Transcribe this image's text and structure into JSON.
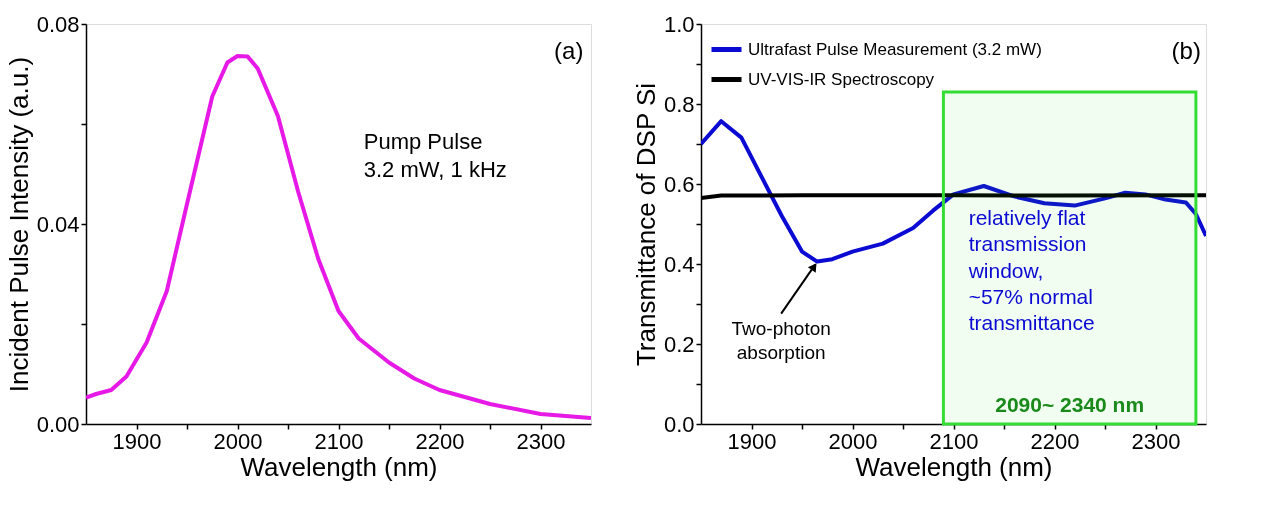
{
  "chart_data": [
    {
      "type": "line",
      "xlabel": "Wavelength (nm)",
      "ylabel": "Incident Pulse Intensity (a.u.)",
      "x": [
        1850,
        1860,
        1875,
        1890,
        1910,
        1930,
        1950,
        1975,
        1990,
        2000,
        2010,
        2020,
        2040,
        2060,
        2080,
        2100,
        2120,
        2150,
        2175,
        2200,
        2250,
        2300,
        2350
      ],
      "series": [
        {
          "color": "#e619e6",
          "values": [
            0.0053,
            0.006,
            0.0068,
            0.0095,
            0.0163,
            0.0266,
            0.044,
            0.0655,
            0.0723,
            0.0736,
            0.0735,
            0.0711,
            0.0616,
            0.0465,
            0.033,
            0.0226,
            0.0171,
            0.0123,
            0.0091,
            0.0068,
            0.004,
            0.002,
            0.0012
          ]
        }
      ],
      "xlim": [
        1850,
        2350
      ],
      "ylim": [
        0,
        0.08
      ],
      "xticks": [
        1900,
        {
          "value": 1950,
          "label": null
        },
        2000,
        {
          "value": 2050,
          "label": null
        },
        2100,
        {
          "value": 2150,
          "label": null
        },
        2200,
        {
          "value": 2250,
          "label": null
        },
        2300
      ],
      "yticks": [
        {
          "value": 0,
          "label": "0.00"
        },
        {
          "value": 0.02,
          "label": null
        },
        0.04,
        {
          "value": 0.06,
          "label": null
        },
        0.08
      ],
      "annotations": [
        "(a)",
        "Pump Pulse\n3.2 mW, 1 kHz"
      ],
      "grid": false,
      "legend": false
    },
    {
      "type": "line",
      "xlabel": "Wavelength (nm)",
      "ylabel": "Transmittance of DSP Si",
      "series": [
        {
          "name": "Ultrafast Pulse Measurement (3.2 mW)",
          "color": "#0a0ad2",
          "x": [
            1850,
            1870,
            1890,
            1910,
            1930,
            1950,
            1965,
            1980,
            2000,
            2030,
            2060,
            2080,
            2100,
            2130,
            2160,
            2190,
            2220,
            2250,
            2270,
            2290,
            2310,
            2330,
            2340,
            2350
          ],
          "values": [
            0.7,
            0.757,
            0.716,
            0.618,
            0.52,
            0.431,
            0.406,
            0.412,
            0.431,
            0.451,
            0.49,
            0.534,
            0.574,
            0.595,
            0.569,
            0.552,
            0.546,
            0.564,
            0.578,
            0.574,
            0.561,
            0.554,
            0.525,
            0.47
          ]
        },
        {
          "name": "UV-VIS-IR Spectroscopy",
          "color": "#000000",
          "x": [
            1850,
            1870,
            1950,
            2100,
            2200,
            2350
          ],
          "values": [
            0.565,
            0.571,
            0.572,
            0.572,
            0.571,
            0.572
          ]
        }
      ],
      "xlim": [
        1850,
        2350
      ],
      "ylim": [
        0,
        1.0
      ],
      "xticks": [
        1900,
        {
          "value": 1950,
          "label": null
        },
        2000,
        {
          "value": 2050,
          "label": null
        },
        2100,
        {
          "value": 2150,
          "label": null
        },
        2200,
        {
          "value": 2250,
          "label": null
        },
        2300
      ],
      "yticks": [
        {
          "value": 0,
          "label": "0.0"
        },
        {
          "value": 0.1,
          "label": null
        },
        0.2,
        {
          "value": 0.3,
          "label": null
        },
        0.4,
        {
          "value": 0.5,
          "label": null
        },
        0.6,
        {
          "value": 0.7,
          "label": null
        },
        0.8,
        {
          "value": 0.9,
          "label": null
        },
        {
          "value": 1,
          "label": "1.0"
        }
      ],
      "bands": [
        {
          "axis": "x",
          "from": 2090,
          "to": 2340,
          "label": "2090~ 2340 nm",
          "color": "#33dd33"
        }
      ],
      "annotations": [
        "(b)",
        {
          "text": "Two-photon\nabsorption",
          "x": 1965,
          "y": 0.406
        },
        "relatively flat\ntransmission\nwindow,\n~57% normal\ntransmittance"
      ],
      "grid": false,
      "legend": "top left"
    }
  ]
}
